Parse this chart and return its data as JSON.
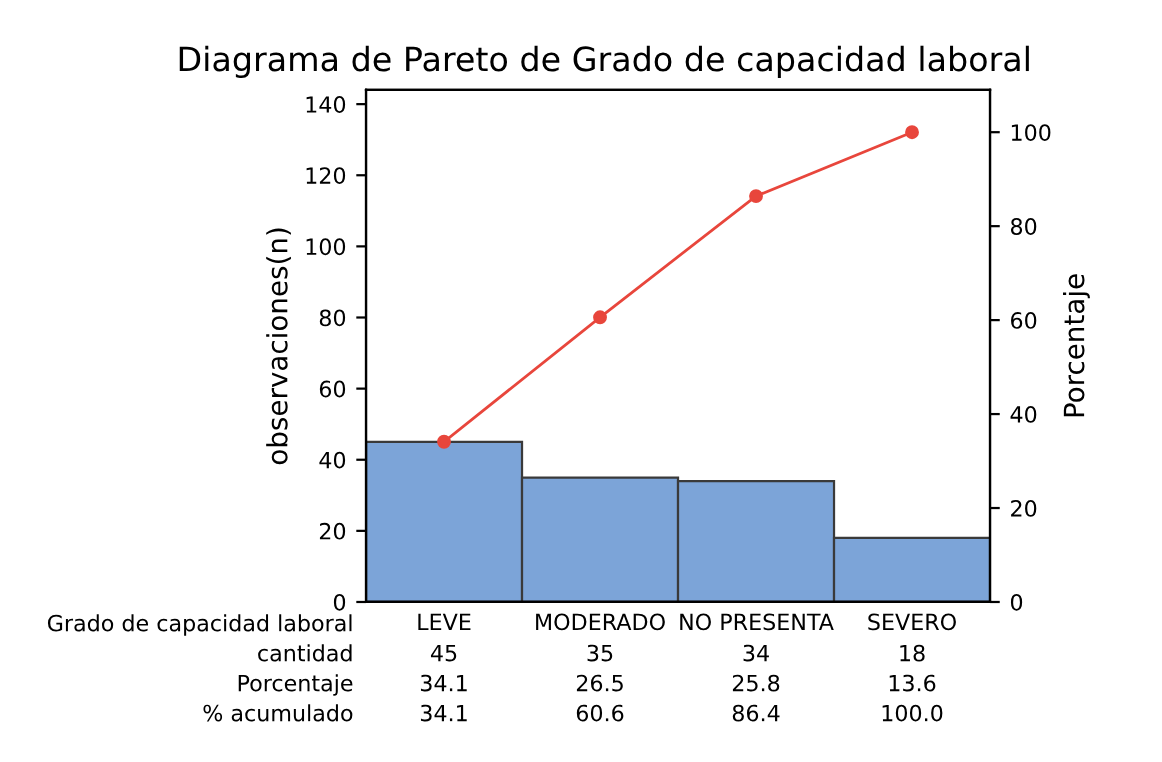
{
  "chart_data": {
    "type": "bar",
    "title": "Diagrama de Pareto de Grado de capacidad laboral",
    "xlabel": "Grado de capacidad laboral",
    "ylabel": "observaciones(n)",
    "y2label": "Porcentaje",
    "categories": [
      "LEVE",
      "MODERADO",
      "NO PRESENTA",
      "SEVERO"
    ],
    "series": [
      {
        "color": "#7ca4d8",
        "values": [
          45,
          35,
          34,
          18
        ]
      },
      {
        "type": "line",
        "axis": "y2",
        "color": "#e8463c",
        "values": [
          34.1,
          60.6,
          86.4,
          100.0
        ]
      }
    ],
    "annotations": [
      "cantidad",
      "45",
      "35",
      "34",
      "18",
      "Porcentaje",
      "34.1",
      "26.5",
      "25.8",
      "13.6",
      "% acumulado",
      "34.1",
      "60.6",
      "86.4",
      "100.0"
    ],
    "ylim": [
      0,
      144
    ],
    "yticks": [
      0,
      20,
      40,
      60,
      80,
      100,
      120,
      140
    ],
    "y2lim": [
      0,
      109
    ],
    "y2ticks": [
      0,
      20,
      40,
      60,
      80,
      100
    ],
    "marker": "circle",
    "grid": false,
    "legend": false
  }
}
